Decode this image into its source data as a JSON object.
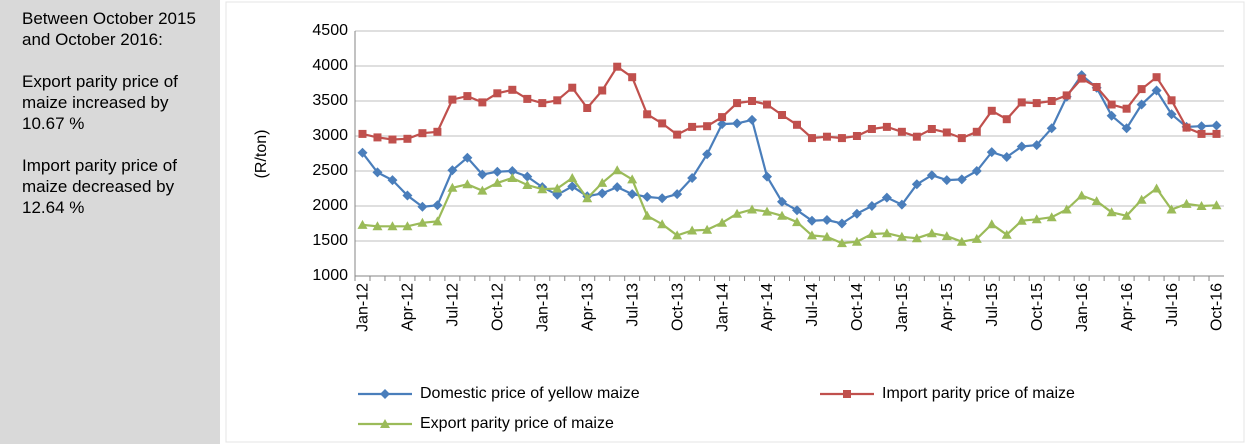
{
  "side_panel": {
    "heading": "Between October 2015 and October 2016:",
    "notes": [
      "Export parity price of maize increased by 10.67 %",
      "Import parity price of maize decreased by 12.64 %"
    ]
  },
  "chart_data": {
    "type": "line",
    "y_label": "(R/ton)",
    "categories": [
      "Jan-12",
      null,
      null,
      "Apr-12",
      null,
      null,
      "Jul-12",
      null,
      null,
      "Oct-12",
      null,
      null,
      "Jan-13",
      null,
      null,
      "Apr-13",
      null,
      null,
      "Jul-13",
      null,
      null,
      "Oct-13",
      null,
      null,
      "Jan-14",
      null,
      null,
      "Apr-14",
      null,
      null,
      "Jul-14",
      null,
      null,
      "Oct-14",
      null,
      null,
      "Jan-15",
      null,
      null,
      "Apr-15",
      null,
      null,
      "Jul-15",
      null,
      null,
      "Oct-15",
      null,
      null,
      "Jan-16",
      null,
      null,
      "Apr-16",
      null,
      null,
      "Jul-16",
      null,
      null,
      "Oct-16"
    ],
    "series": [
      {
        "name": "Domestic price of yellow maize",
        "color": "#4a7ebb",
        "marker": "diamond",
        "values": [
          2760,
          2480,
          2370,
          2150,
          1990,
          2010,
          2510,
          2690,
          2450,
          2490,
          2500,
          2420,
          2270,
          2160,
          2280,
          2140,
          2180,
          2270,
          2170,
          2130,
          2110,
          2170,
          2400,
          2740,
          3170,
          3180,
          3230,
          2420,
          2060,
          1940,
          1790,
          1800,
          1750,
          1890,
          2000,
          2120,
          2020,
          2310,
          2440,
          2370,
          2380,
          2500,
          2770,
          2700,
          2850,
          2870,
          3110,
          3560,
          3870,
          3690,
          3290,
          3110,
          3450,
          3650,
          3310,
          3130,
          3140,
          3150
        ]
      },
      {
        "name": "Import parity price of maize",
        "color": "#c0504d",
        "marker": "square",
        "values": [
          3030,
          2980,
          2950,
          2960,
          3040,
          3060,
          3520,
          3570,
          3480,
          3610,
          3660,
          3530,
          3470,
          3510,
          3690,
          3400,
          3650,
          3990,
          3840,
          3310,
          3180,
          3020,
          3130,
          3140,
          3270,
          3470,
          3500,
          3450,
          3300,
          3160,
          2970,
          2990,
          2970,
          3000,
          3100,
          3130,
          3060,
          2990,
          3100,
          3050,
          2970,
          3060,
          3360,
          3240,
          3480,
          3470,
          3500,
          3580,
          3820,
          3700,
          3450,
          3390,
          3670,
          3840,
          3510,
          3120,
          3030,
          3030
        ]
      },
      {
        "name": "Export parity price of maize",
        "color": "#9bbb59",
        "marker": "triangle",
        "values": [
          1730,
          1710,
          1710,
          1710,
          1760,
          1780,
          2260,
          2310,
          2220,
          2330,
          2400,
          2300,
          2240,
          2250,
          2400,
          2110,
          2330,
          2510,
          2380,
          1860,
          1740,
          1580,
          1650,
          1660,
          1760,
          1890,
          1950,
          1920,
          1860,
          1770,
          1580,
          1560,
          1470,
          1490,
          1600,
          1610,
          1560,
          1540,
          1610,
          1570,
          1490,
          1530,
          1740,
          1590,
          1790,
          1810,
          1840,
          1950,
          2150,
          2070,
          1910,
          1860,
          2090,
          2250,
          1950,
          2030,
          2000,
          2010
        ]
      }
    ],
    "ylim": [
      1000,
      4500
    ],
    "yticks": [
      1000,
      1500,
      2000,
      2500,
      3000,
      3500,
      4000,
      4500
    ],
    "grid": true
  }
}
